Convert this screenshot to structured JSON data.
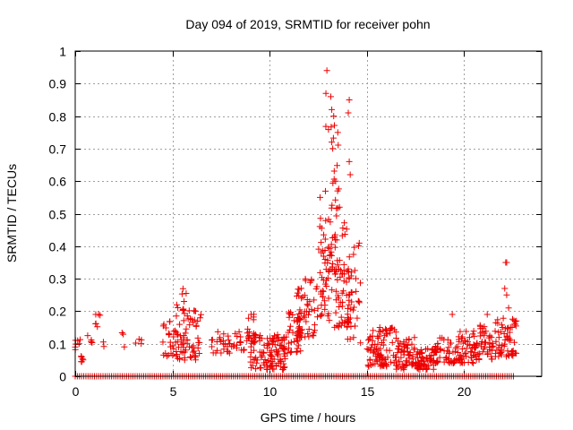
{
  "chart_data": {
    "type": "scatter",
    "title": "Day 094 of 2019, SRMTID for receiver pohn",
    "xlabel": "GPS time / hours",
    "ylabel": "SRMTID / TECUs",
    "xlim": [
      0,
      24
    ],
    "ylim": [
      0,
      1
    ],
    "xticks": [
      0,
      5,
      10,
      15,
      20
    ],
    "xtick_labels": [
      "0",
      "5",
      "10",
      "15",
      "20"
    ],
    "yticks": [
      0,
      0.1,
      0.2,
      0.3,
      0.4,
      0.5,
      0.6,
      0.7,
      0.8,
      0.9,
      1
    ],
    "ytick_labels": [
      "0",
      "0.1",
      "0.2",
      "0.3",
      "0.4",
      "0.5",
      "0.6",
      "0.7",
      "0.8",
      "0.9",
      "1"
    ],
    "grid": true,
    "marker": "+",
    "color": "#ee0000",
    "zero_line_x_range": [
      0,
      22.6
    ],
    "clusters": [
      {
        "x0": 0.0,
        "x1": 0.3,
        "ylo": 0.08,
        "yhi": 0.12,
        "n": 6
      },
      {
        "x0": 0.3,
        "x1": 0.6,
        "ylo": 0.04,
        "yhi": 0.07,
        "n": 6
      },
      {
        "x0": 0.6,
        "x1": 1.0,
        "ylo": 0.09,
        "yhi": 0.13,
        "n": 5
      },
      {
        "x0": 1.0,
        "x1": 1.3,
        "ylo": 0.15,
        "yhi": 0.2,
        "n": 5
      },
      {
        "x0": 1.4,
        "x1": 1.6,
        "ylo": 0.09,
        "yhi": 0.11,
        "n": 2
      },
      {
        "x0": 2.4,
        "x1": 2.6,
        "ylo": 0.09,
        "yhi": 0.14,
        "n": 3
      },
      {
        "x0": 3.1,
        "x1": 3.5,
        "ylo": 0.09,
        "yhi": 0.13,
        "n": 4
      },
      {
        "x0": 4.5,
        "x1": 5.2,
        "ylo": 0.06,
        "yhi": 0.17,
        "n": 25
      },
      {
        "x0": 5.2,
        "x1": 6.5,
        "ylo": 0.05,
        "yhi": 0.22,
        "n": 70
      },
      {
        "x0": 5.5,
        "x1": 5.8,
        "ylo": 0.25,
        "yhi": 0.27,
        "n": 3
      },
      {
        "x0": 7.0,
        "x1": 8.0,
        "ylo": 0.07,
        "yhi": 0.14,
        "n": 25
      },
      {
        "x0": 8.0,
        "x1": 8.7,
        "ylo": 0.08,
        "yhi": 0.15,
        "n": 15
      },
      {
        "x0": 8.8,
        "x1": 9.3,
        "ylo": 0.1,
        "yhi": 0.2,
        "n": 20
      },
      {
        "x0": 9.0,
        "x1": 10.8,
        "ylo": 0.02,
        "yhi": 0.13,
        "n": 110
      },
      {
        "x0": 10.8,
        "x1": 11.6,
        "ylo": 0.07,
        "yhi": 0.2,
        "n": 40
      },
      {
        "x0": 11.4,
        "x1": 12.4,
        "ylo": 0.12,
        "yhi": 0.3,
        "n": 55
      },
      {
        "x0": 12.4,
        "x1": 13.0,
        "ylo": 0.18,
        "yhi": 0.5,
        "n": 40
      },
      {
        "x0": 13.0,
        "x1": 14.2,
        "ylo": 0.15,
        "yhi": 0.5,
        "n": 90
      },
      {
        "x0": 12.8,
        "x1": 13.6,
        "ylo": 0.5,
        "yhi": 0.8,
        "n": 18
      },
      {
        "x0": 14.0,
        "x1": 14.7,
        "ylo": 0.1,
        "yhi": 0.42,
        "n": 30
      },
      {
        "x0": 15.0,
        "x1": 16.5,
        "ylo": 0.03,
        "yhi": 0.15,
        "n": 90
      },
      {
        "x0": 16.5,
        "x1": 17.5,
        "ylo": 0.02,
        "yhi": 0.12,
        "n": 60
      },
      {
        "x0": 17.5,
        "x1": 18.5,
        "ylo": 0.02,
        "yhi": 0.09,
        "n": 60
      },
      {
        "x0": 18.5,
        "x1": 19.5,
        "ylo": 0.04,
        "yhi": 0.12,
        "n": 40
      },
      {
        "x0": 19.5,
        "x1": 20.5,
        "ylo": 0.04,
        "yhi": 0.14,
        "n": 50
      },
      {
        "x0": 20.5,
        "x1": 21.5,
        "ylo": 0.05,
        "yhi": 0.16,
        "n": 55
      },
      {
        "x0": 21.5,
        "x1": 22.7,
        "ylo": 0.06,
        "yhi": 0.18,
        "n": 60
      }
    ],
    "extra_points": [
      [
        12.95,
        0.94
      ],
      [
        12.9,
        0.87
      ],
      [
        13.3,
        0.8
      ],
      [
        13.2,
        0.82
      ],
      [
        13.15,
        0.86
      ],
      [
        14.1,
        0.85
      ],
      [
        14.05,
        0.81
      ],
      [
        14.1,
        0.66
      ],
      [
        14.15,
        0.62
      ],
      [
        13.2,
        0.72
      ],
      [
        13.25,
        0.7
      ],
      [
        12.6,
        0.55
      ],
      [
        13.4,
        0.6
      ],
      [
        13.5,
        0.57
      ],
      [
        13.6,
        0.52
      ],
      [
        14.6,
        0.23
      ],
      [
        9.05,
        0.19
      ],
      [
        19.4,
        0.19
      ],
      [
        21.2,
        0.19
      ],
      [
        22.15,
        0.35
      ],
      [
        22.2,
        0.35
      ],
      [
        22.1,
        0.27
      ],
      [
        22.2,
        0.25
      ],
      [
        22.3,
        0.21
      ],
      [
        22.7,
        0.17
      ],
      [
        22.65,
        0.16
      ],
      [
        0.2,
        0.1
      ],
      [
        1.2,
        0.19
      ],
      [
        5.6,
        0.23
      ],
      [
        6.2,
        0.2
      ]
    ]
  }
}
